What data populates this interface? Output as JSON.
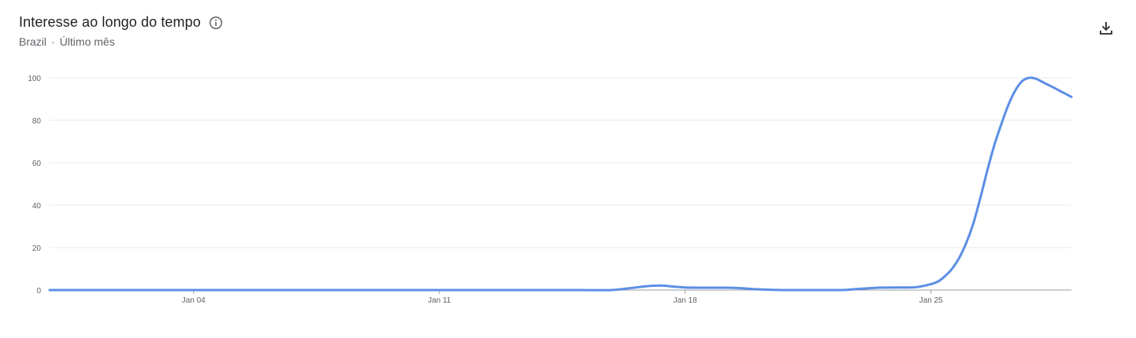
{
  "header": {
    "title": "Interesse ao longo do tempo",
    "region": "Brazil",
    "separator": "·",
    "period": "Último mês"
  },
  "icons": {
    "info": "info-icon",
    "download": "download-icon"
  },
  "colors": {
    "line": "#5b8ee6",
    "grid": "#e8eaed",
    "axis": "#5f6368"
  },
  "chart_data": {
    "type": "line",
    "xlabel": "",
    "ylabel": "",
    "ylim": [
      0,
      100
    ],
    "yticks": [
      0,
      20,
      40,
      60,
      80,
      100
    ],
    "grid": true,
    "xticks": [
      {
        "label": "Jan 04",
        "x": 4
      },
      {
        "label": "Jan 11",
        "x": 11
      },
      {
        "label": "Jan 18",
        "x": 18
      },
      {
        "label": "Jan 25",
        "x": 25
      }
    ],
    "xlim": [
      -0.1,
      29
    ],
    "series": [
      {
        "x": [
          -0.1,
          1,
          2,
          3,
          4,
          5,
          6,
          7,
          8,
          9,
          10,
          11,
          12,
          13,
          14,
          15,
          15.9,
          16.4,
          16.9,
          17.3,
          17.7,
          18,
          18.4,
          18.8,
          19.2,
          19.6,
          20,
          20.5,
          21,
          21.5,
          22,
          22.3,
          22.6,
          23,
          23.5,
          24,
          24.3,
          24.6,
          25,
          25.2,
          25.4,
          25.6,
          25.8,
          26,
          26.2,
          26.4,
          26.6,
          26.8,
          27,
          27.2,
          27.4,
          27.6,
          27.8,
          28,
          28.3,
          28.6,
          29
        ],
        "values": [
          0,
          0,
          0,
          0,
          0,
          0,
          0,
          0,
          0,
          0,
          0,
          0,
          0,
          0,
          0,
          0,
          0,
          0.8,
          1.8,
          2.1,
          1.6,
          1.2,
          1.1,
          1.1,
          1.1,
          0.9,
          0.4,
          0.1,
          0,
          0,
          0,
          0,
          0.1,
          0.6,
          1.1,
          1.2,
          1.2,
          1.4,
          2.8,
          4,
          6.5,
          10,
          15,
          22,
          31,
          43,
          56,
          68,
          78,
          87,
          94,
          98.5,
          100,
          99.5,
          97,
          94.5,
          91
        ]
      }
    ]
  }
}
